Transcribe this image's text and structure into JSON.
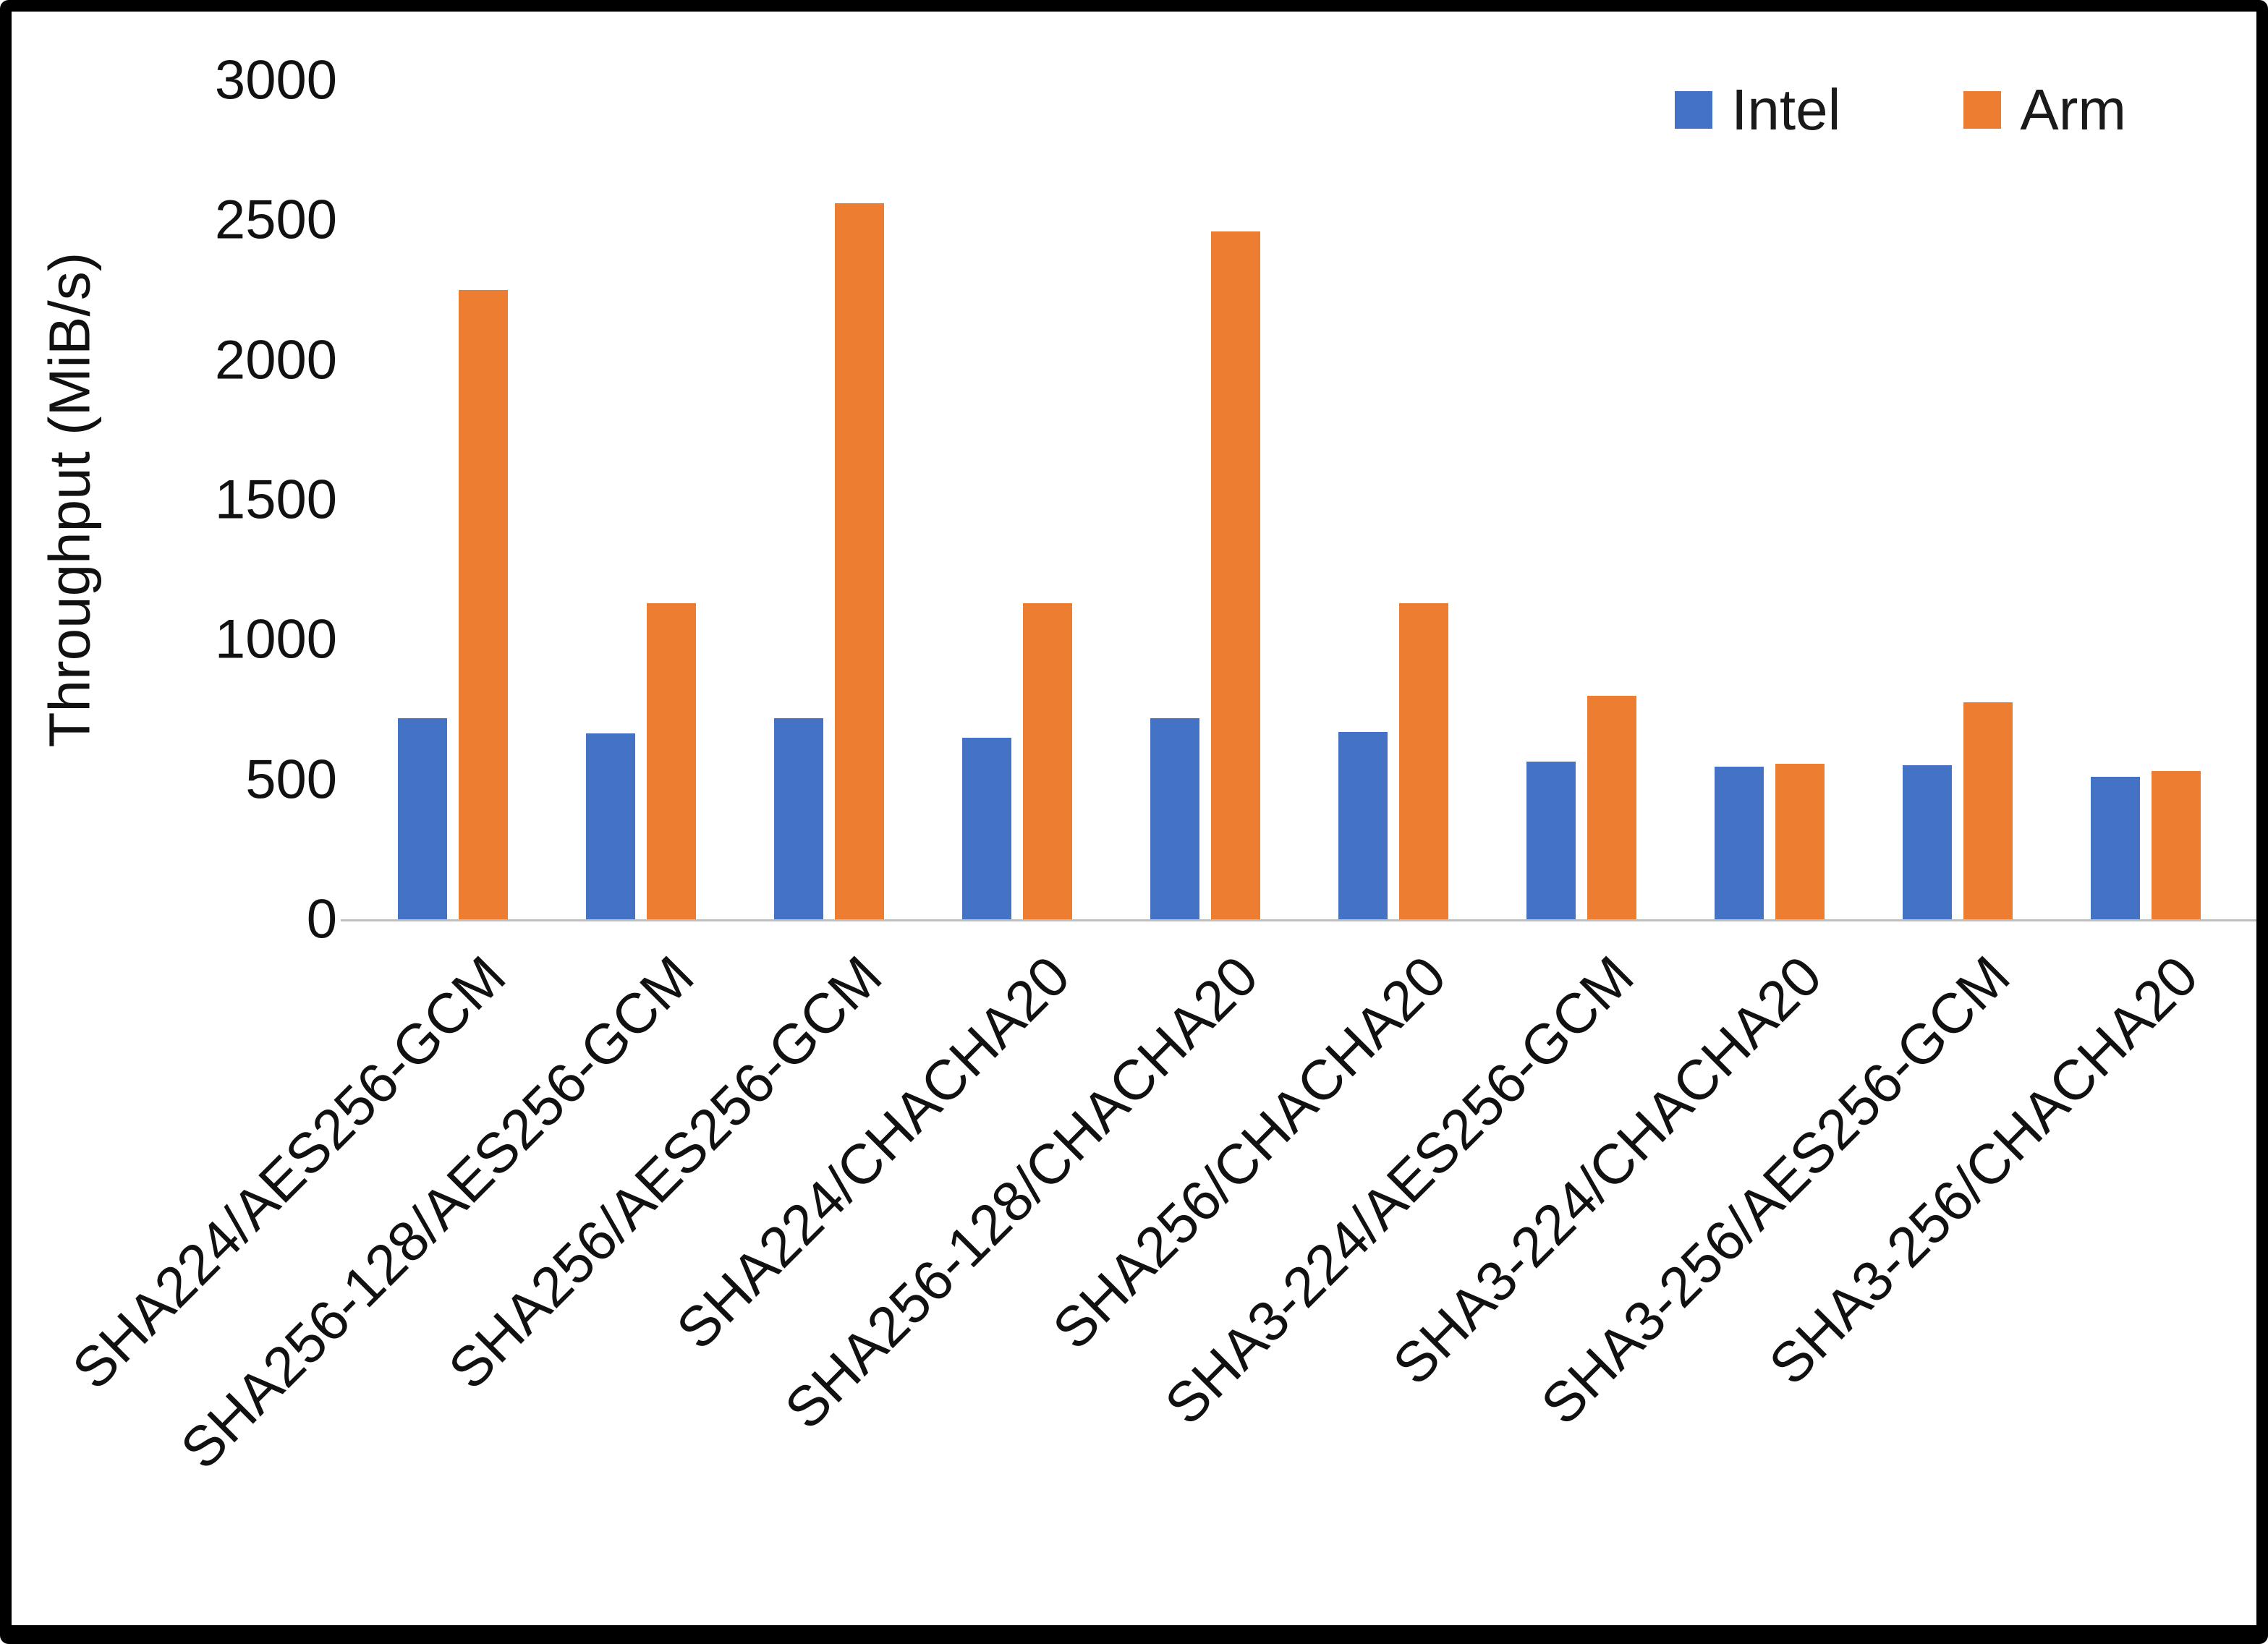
{
  "chart_data": {
    "type": "bar",
    "title": "",
    "xlabel": "",
    "ylabel": "Throughput (MiB/s)",
    "ylim": [
      0,
      3000
    ],
    "yticks": [
      0,
      500,
      1000,
      1500,
      2000,
      2500,
      3000
    ],
    "grid": false,
    "legend_position": "top-right",
    "categories": [
      "SHA224/AES256-GCM",
      "SHA256-128/AES256-GCM",
      "SHA256/AES256-GCM",
      "SHA224/CHACHA20",
      "SHA256-128/CHACHA20",
      "SHA256/CHACHA20",
      "SHA3-224/AES256-GCM",
      "SHA3-224/CHACHA20",
      "SHA3-256/AES256-GCM",
      "SHA3-256/CHACHA20"
    ],
    "series": [
      {
        "name": "Intel",
        "color": "#4472C4",
        "values": [
          720,
          665,
          720,
          650,
          720,
          670,
          565,
          545,
          550,
          510
        ]
      },
      {
        "name": "Arm",
        "color": "#ED7D31",
        "values": [
          2250,
          1130,
          2560,
          1130,
          2460,
          1130,
          800,
          555,
          775,
          530
        ]
      }
    ]
  }
}
